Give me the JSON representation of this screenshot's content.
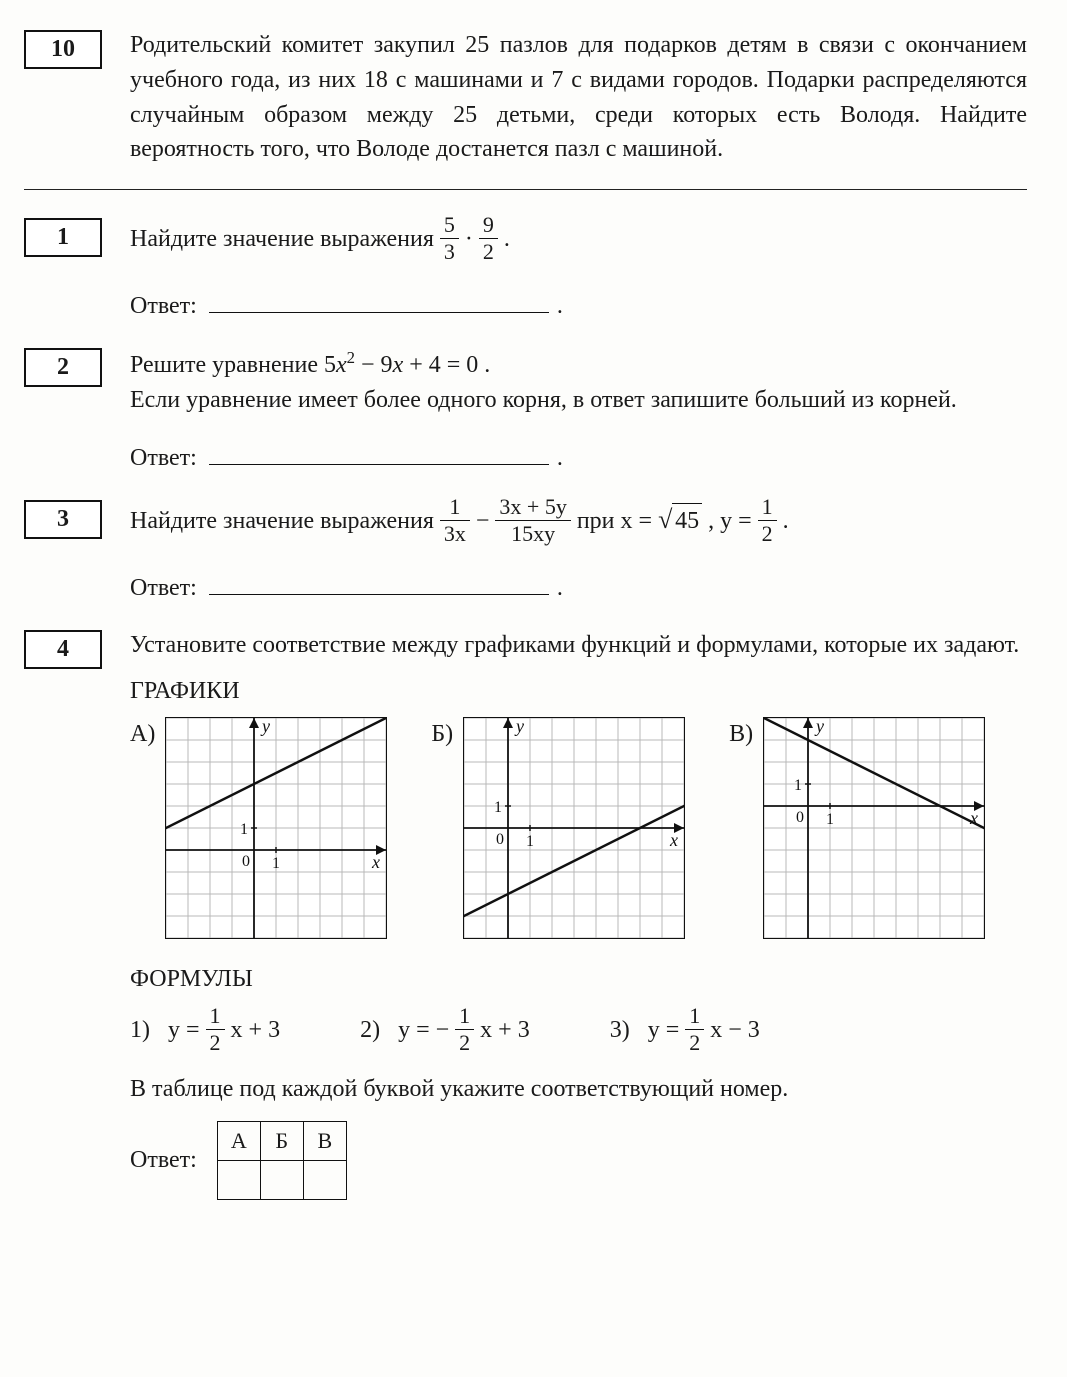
{
  "p10": {
    "num": "10",
    "text": "Родительский комитет закупил 25 пазлов для подарков детям в связи с окончанием учебного года, из них 18 с машинами и 7 с видами городов. Подарки распределяются случайным образом между 25 детьми, среди которых есть Володя. Найдите вероятность того, что Володе достанется пазл с машиной."
  },
  "p1": {
    "num": "1",
    "prefix": "Найдите значение выражения ",
    "f1n": "5",
    "f1d": "3",
    "dot": "·",
    "f2n": "9",
    "f2d": "2",
    "suffix": ".",
    "answer_label": "Ответ:"
  },
  "p2": {
    "num": "2",
    "line1a": "Решите уравнение  5",
    "line1b": " − 9",
    "line1c": " + 4 = 0 .",
    "var": "x",
    "exp": "2",
    "line2": "Если уравнение имеет более одного корня, в ответ запишите больший из корней.",
    "answer_label": "Ответ:"
  },
  "p3": {
    "num": "3",
    "prefix": "Найдите значение выражения ",
    "f1n": "1",
    "f1d": "3x",
    "minus": " − ",
    "f2n": "3x + 5y",
    "f2d": "15xy",
    "mid": "  при  ",
    "xeq": "x = ",
    "rad": "45",
    "comma": " ,  ",
    "yeq": "y = ",
    "f3n": "1",
    "f3d": "2",
    "suffix": " .",
    "answer_label": "Ответ:"
  },
  "p4": {
    "num": "4",
    "text1": "Установите соответствие между графиками функций и формулами, которые их задают.",
    "graphs_title": "ГРАФИКИ",
    "labels": [
      "А)",
      "Б)",
      "В)"
    ],
    "axis_x": "x",
    "axis_y": "y",
    "tick0": "0",
    "tick1": "1",
    "chart": {
      "size": 220,
      "cell": 22,
      "origin": {
        "A": [
          88,
          132
        ],
        "B": [
          44,
          110
        ],
        "C": [
          44,
          88
        ]
      },
      "bg": "#ffffff",
      "grid_color": "#b8b8b8",
      "axis_color": "#111111",
      "line_color": "#111111",
      "line_width": 2.5,
      "lines": {
        "A": {
          "slope": 0.5,
          "intercept_cells": 3
        },
        "B": {
          "slope": 0.5,
          "intercept_cells": -3
        },
        "C": {
          "slope": -0.5,
          "intercept_cells": 3
        }
      }
    },
    "formulas_title": "ФОРМУЛЫ",
    "formulas": [
      {
        "n": "1)",
        "pre": "y = ",
        "fn": "1",
        "fd": "2",
        "post": "x + 3"
      },
      {
        "n": "2)",
        "pre": "y = −",
        "fn": "1",
        "fd": "2",
        "post": "x + 3"
      },
      {
        "n": "3)",
        "pre": "y = ",
        "fn": "1",
        "fd": "2",
        "post": "x − 3"
      }
    ],
    "text2": "В таблице под каждой буквой укажите соответствующий номер.",
    "answer_label": "Ответ:",
    "table_headers": [
      "А",
      "Б",
      "В"
    ]
  }
}
